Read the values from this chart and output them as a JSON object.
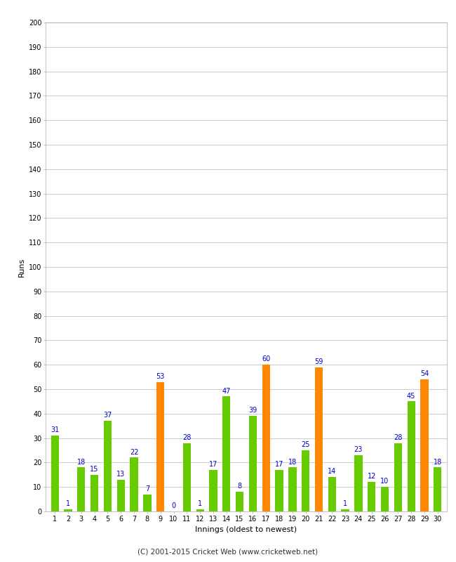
{
  "innings": [
    1,
    2,
    3,
    4,
    5,
    6,
    7,
    8,
    9,
    10,
    11,
    12,
    13,
    14,
    15,
    16,
    17,
    18,
    19,
    20,
    21,
    22,
    23,
    24,
    25,
    26,
    27,
    28,
    29,
    30
  ],
  "values": [
    31,
    1,
    18,
    15,
    37,
    13,
    22,
    7,
    53,
    0,
    28,
    1,
    17,
    47,
    8,
    39,
    60,
    17,
    18,
    25,
    59,
    14,
    1,
    23,
    12,
    10,
    28,
    45,
    54,
    18
  ],
  "colors": [
    "#66cc00",
    "#66cc00",
    "#66cc00",
    "#66cc00",
    "#66cc00",
    "#66cc00",
    "#66cc00",
    "#66cc00",
    "#ff8800",
    "#66cc00",
    "#66cc00",
    "#66cc00",
    "#66cc00",
    "#66cc00",
    "#66cc00",
    "#66cc00",
    "#ff8800",
    "#66cc00",
    "#66cc00",
    "#66cc00",
    "#ff8800",
    "#66cc00",
    "#66cc00",
    "#66cc00",
    "#66cc00",
    "#66cc00",
    "#66cc00",
    "#66cc00",
    "#ff8800",
    "#66cc00"
  ],
  "xlabel": "Innings (oldest to newest)",
  "ylabel": "Runs",
  "ylim": [
    0,
    200
  ],
  "ytick_step": 10,
  "label_color": "#0000cc",
  "label_fontsize": 7,
  "axis_label_fontsize": 8,
  "tick_fontsize": 7,
  "footer": "(C) 2001-2015 Cricket Web (www.cricketweb.net)",
  "footer_fontsize": 7.5,
  "background_color": "#ffffff",
  "grid_color": "#cccccc",
  "bar_width": 0.6
}
